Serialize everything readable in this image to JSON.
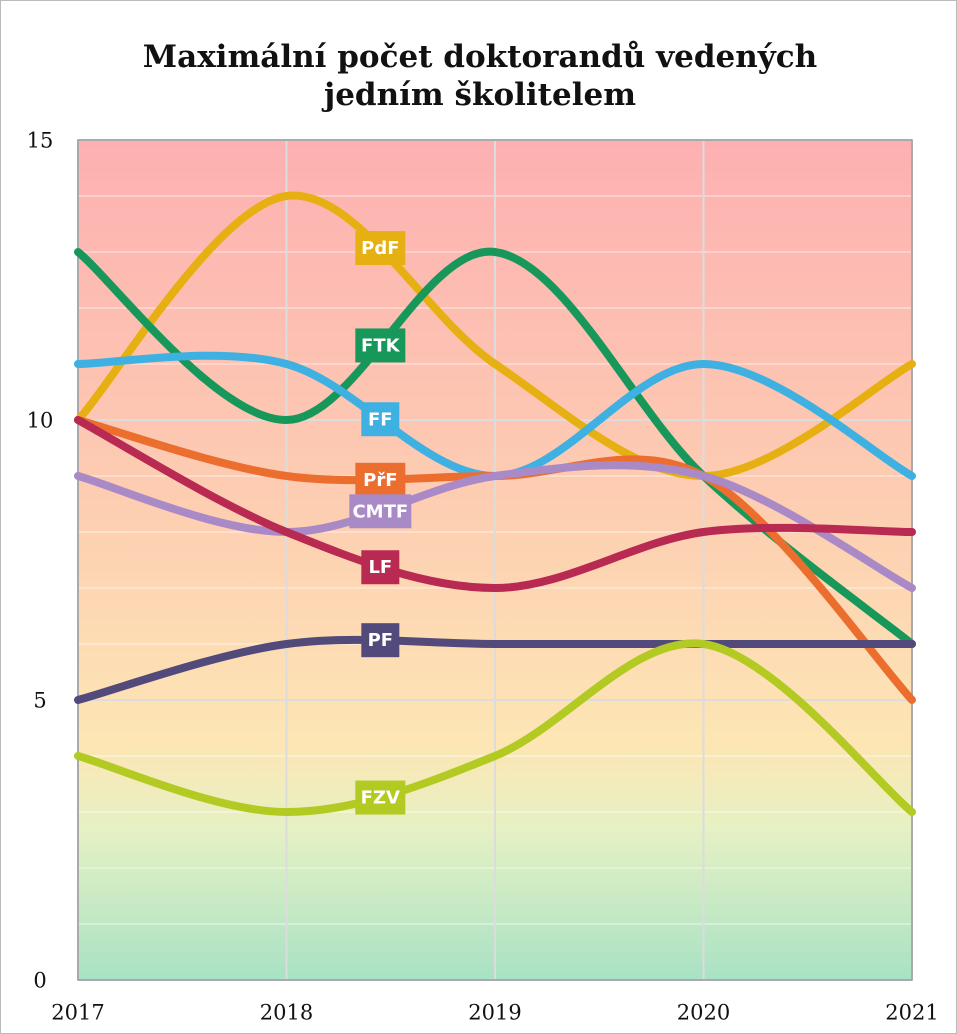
{
  "chart_data": {
    "type": "line",
    "title": "Maximální počet doktorandů vedených jedním školitelem",
    "x": [
      2017,
      2018,
      2019,
      2020,
      2021
    ],
    "xlim": [
      2017,
      2021
    ],
    "xticks": [
      2017,
      2018,
      2019,
      2020,
      2021
    ],
    "ylim": [
      0,
      15
    ],
    "yticks": [
      0,
      5,
      10,
      15
    ],
    "yminorticks": [
      1,
      2,
      3,
      4,
      6,
      7,
      8,
      9,
      11,
      12,
      13,
      14
    ],
    "grid": true,
    "smooth": true,
    "series": [
      {
        "name": "PdF",
        "color": "#e6b012",
        "values": [
          10,
          14,
          11,
          9,
          11
        ]
      },
      {
        "name": "FTK",
        "color": "#17985a",
        "values": [
          13,
          10,
          13,
          9,
          6
        ]
      },
      {
        "name": "FF",
        "color": "#3eb0e2",
        "values": [
          11,
          11,
          9,
          11,
          9
        ]
      },
      {
        "name": "PřF",
        "color": "#ec6e2e",
        "values": [
          10,
          9,
          9,
          9,
          5
        ]
      },
      {
        "name": "CMTF",
        "color": "#a98ac6",
        "values": [
          9,
          8,
          9,
          9,
          7
        ]
      },
      {
        "name": "LF",
        "color": "#b82a52",
        "values": [
          10,
          8,
          7,
          8,
          8
        ]
      },
      {
        "name": "PF",
        "color": "#514a7a",
        "values": [
          5,
          6,
          6,
          6,
          6
        ]
      },
      {
        "name": "FZV",
        "color": "#b3ca22",
        "values": [
          4,
          3,
          4,
          6,
          3
        ]
      }
    ]
  }
}
